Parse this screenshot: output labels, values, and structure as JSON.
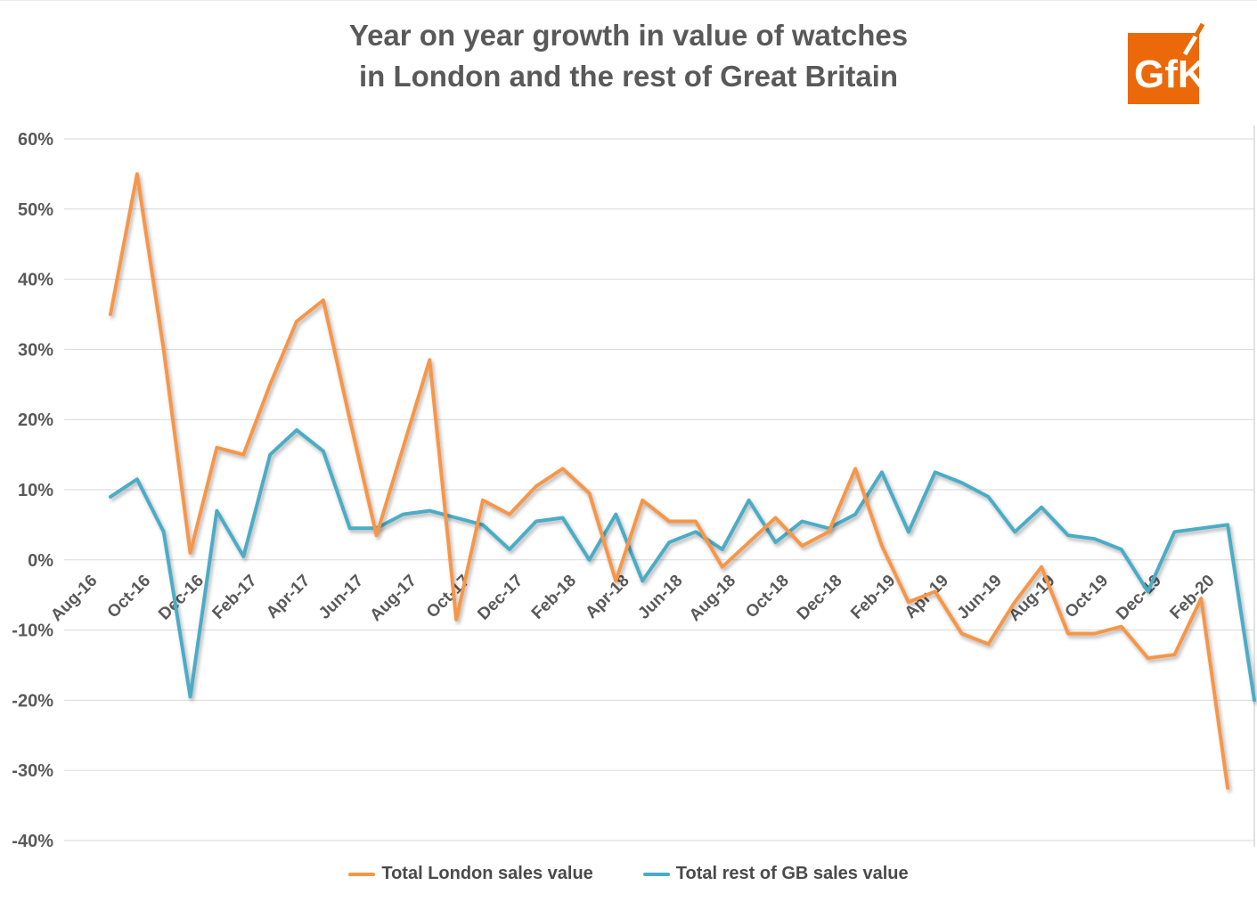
{
  "title": {
    "line1": "Year on year growth in value of watches",
    "line2": "in London and the rest of Great Britain"
  },
  "logo": {
    "text": "GfK",
    "color": "#EB6909"
  },
  "legend": [
    {
      "label": "Total London sales value",
      "color": "#F79646"
    },
    {
      "label": "Total rest of GB sales value",
      "color": "#4BACC6"
    }
  ],
  "chart_data": {
    "type": "line",
    "x": [
      "Aug-16",
      "Sep-16",
      "Oct-16",
      "Nov-16",
      "Dec-16",
      "Jan-17",
      "Feb-17",
      "Mar-17",
      "Apr-17",
      "May-17",
      "Jun-17",
      "Jul-17",
      "Aug-17",
      "Sep-17",
      "Oct-17",
      "Nov-17",
      "Dec-17",
      "Jan-18",
      "Feb-18",
      "Mar-18",
      "Apr-18",
      "May-18",
      "Jun-18",
      "Jul-18",
      "Aug-18",
      "Sep-18",
      "Oct-18",
      "Nov-18",
      "Dec-18",
      "Jan-19",
      "Feb-19",
      "Mar-19",
      "Apr-19",
      "May-19",
      "Jun-19",
      "Jul-19",
      "Aug-19",
      "Sep-19",
      "Oct-19",
      "Nov-19",
      "Dec-19",
      "Jan-20",
      "Feb-20",
      "Mar-20"
    ],
    "x_tick_labels_every": 2,
    "series": [
      {
        "name": "Total London sales value",
        "color": "#F79646",
        "values": [
          35,
          55,
          30,
          1,
          16,
          15,
          25,
          34,
          37,
          20,
          3.5,
          16,
          28.5,
          -8.5,
          8.5,
          6.5,
          10.5,
          13,
          9.5,
          -3,
          8.5,
          5.5,
          5.5,
          -1,
          2.5,
          6,
          2,
          4,
          13,
          2,
          -6,
          -4.5,
          -10.5,
          -12,
          -6,
          -1,
          -10.5,
          -10.5,
          -9.5,
          -14,
          -13.5,
          -5.5,
          -32.5,
          null
        ]
      },
      {
        "name": "Total rest of GB sales value",
        "color": "#4BACC6",
        "values": [
          9,
          11.5,
          4,
          -19.5,
          7,
          0.5,
          15,
          18.5,
          15.5,
          4.5,
          4.5,
          6.5,
          7,
          6,
          5,
          1.5,
          5.5,
          6,
          0,
          6.5,
          -3,
          2.5,
          4,
          1.5,
          8.5,
          2.5,
          5.5,
          4.5,
          6.5,
          12.5,
          4,
          12.5,
          11,
          9,
          4,
          7.5,
          3.5,
          3,
          1.5,
          -4.5,
          4,
          4.5,
          5,
          -20
        ]
      }
    ],
    "ylabel_format": "percent",
    "yticks": [
      60,
      50,
      40,
      30,
      20,
      10,
      0,
      -10,
      -20,
      -30,
      -40
    ],
    "ylim": [
      -40,
      60
    ],
    "grid": "horizontal",
    "legend_position": "bottom",
    "tick_label_color": "#595959",
    "grid_color": "#D9D9D9"
  }
}
